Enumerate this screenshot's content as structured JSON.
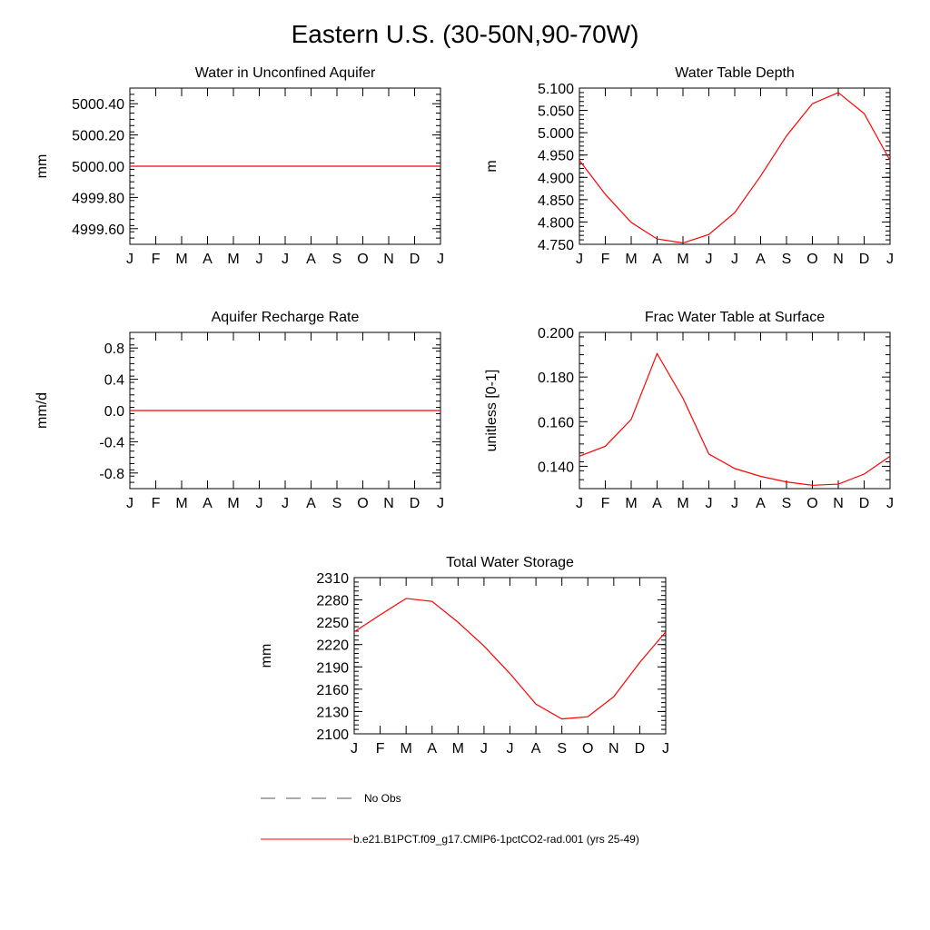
{
  "page": {
    "title": "Eastern U.S. (30-50N,90-70W)"
  },
  "chart_data": [
    {
      "type": "line",
      "title": "Water in Unconfined Aquifer",
      "xlabel": "",
      "ylabel": "mm",
      "categories": [
        "J",
        "F",
        "M",
        "A",
        "M",
        "J",
        "J",
        "A",
        "S",
        "O",
        "N",
        "D",
        "J"
      ],
      "ylim": [
        4999.5,
        5000.5
      ],
      "yticks": [
        "4999.60",
        "4999.80",
        "5000.00",
        "5000.20",
        "5000.40"
      ],
      "series": [
        {
          "color": "#ff0000",
          "values": [
            5000,
            5000,
            5000,
            5000,
            5000,
            5000,
            5000,
            5000,
            5000,
            5000,
            5000,
            5000,
            5000
          ]
        }
      ]
    },
    {
      "type": "line",
      "title": "Water Table Depth",
      "xlabel": "",
      "ylabel": "m",
      "categories": [
        "J",
        "F",
        "M",
        "A",
        "M",
        "J",
        "J",
        "A",
        "S",
        "O",
        "N",
        "D",
        "J"
      ],
      "ylim": [
        4.75,
        5.1
      ],
      "yticks": [
        "4.750",
        "4.800",
        "4.850",
        "4.900",
        "4.950",
        "5.000",
        "5.050",
        "5.100"
      ],
      "series": [
        {
          "color": "#ff0000",
          "values": [
            4.938,
            4.862,
            4.799,
            4.762,
            4.753,
            4.772,
            4.821,
            4.903,
            4.993,
            5.065,
            5.09,
            5.043,
            4.938
          ]
        }
      ]
    },
    {
      "type": "line",
      "title": "Aquifer Recharge Rate",
      "xlabel": "",
      "ylabel": "mm/d",
      "categories": [
        "J",
        "F",
        "M",
        "A",
        "M",
        "J",
        "J",
        "A",
        "S",
        "O",
        "N",
        "D",
        "J"
      ],
      "ylim": [
        -1.0,
        1.0
      ],
      "yticks": [
        "-0.8",
        "-0.4",
        "0.0",
        "0.4",
        "0.8"
      ],
      "series": [
        {
          "color": "#ff0000",
          "values": [
            0,
            0,
            0,
            0,
            0,
            0,
            0,
            0,
            0,
            0,
            0,
            0,
            0
          ]
        }
      ]
    },
    {
      "type": "line",
      "title": "Frac Water Table at Surface",
      "xlabel": "",
      "ylabel": "unitless [0-1]",
      "categories": [
        "J",
        "F",
        "M",
        "A",
        "M",
        "J",
        "J",
        "A",
        "S",
        "O",
        "N",
        "D",
        "J"
      ],
      "ylim": [
        0.13,
        0.2
      ],
      "yticks": [
        "0.140",
        "0.160",
        "0.180",
        "0.200"
      ],
      "series": [
        {
          "color": "#ff0000",
          "values": [
            0.1445,
            0.149,
            0.161,
            0.1905,
            0.1705,
            0.1455,
            0.139,
            0.1355,
            0.133,
            0.1315,
            0.132,
            0.1365,
            0.1445
          ]
        }
      ]
    },
    {
      "type": "line",
      "title": "Total Water Storage",
      "xlabel": "",
      "ylabel": "mm",
      "categories": [
        "J",
        "F",
        "M",
        "A",
        "M",
        "J",
        "J",
        "A",
        "S",
        "O",
        "N",
        "D",
        "J"
      ],
      "ylim": [
        2100,
        2310
      ],
      "yticks": [
        "2100",
        "2130",
        "2160",
        "2190",
        "2220",
        "2250",
        "2280",
        "2310"
      ],
      "series": [
        {
          "color": "#ff0000",
          "values": [
            2237,
            2260,
            2282,
            2278,
            2250,
            2218,
            2181,
            2140,
            2120,
            2123,
            2150,
            2196,
            2237
          ]
        }
      ]
    }
  ],
  "legend": [
    {
      "label": "No Obs",
      "color": "#555555",
      "dashed": true
    },
    {
      "label": "b.e21.B1PCT.f09_g17.CMIP6-1pctCO2-rad.001 (yrs 25-49)",
      "color": "#ff0000",
      "dashed": false
    }
  ]
}
